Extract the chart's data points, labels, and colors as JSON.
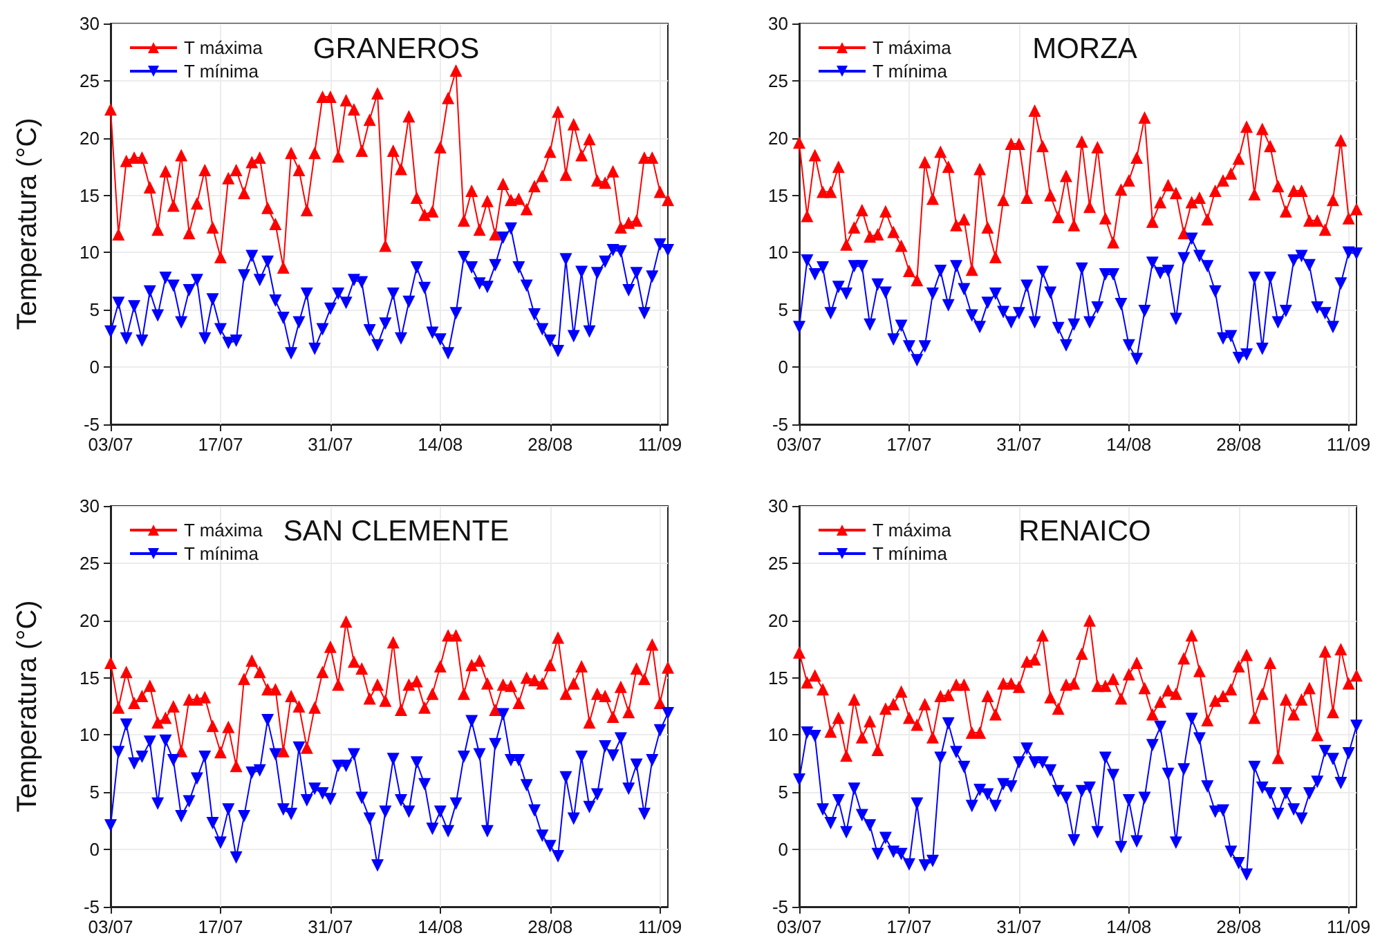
{
  "chart_data": [
    {
      "type": "line",
      "title": "GRANEROS",
      "ylabel": "Temperatura (°C)",
      "x": [
        "--07-03",
        "--07-04",
        "--07-05",
        "--07-06",
        "--07-07",
        "--07-08",
        "--07-09",
        "--07-10",
        "--07-11",
        "--07-12",
        "--07-13",
        "--07-14",
        "--07-15",
        "--07-16",
        "--07-17",
        "--07-18",
        "--07-19",
        "--07-20",
        "--07-21",
        "--07-22",
        "--07-23",
        "--07-24",
        "--07-25",
        "--07-26",
        "--07-27",
        "--07-28",
        "--07-29",
        "--07-30",
        "--07-31",
        "--08-01",
        "--08-02",
        "--08-03",
        "--08-04",
        "--08-05",
        "--08-06",
        "--08-07",
        "--08-08",
        "--08-09",
        "--08-10",
        "--08-11",
        "--08-12",
        "--08-13",
        "--08-14",
        "--08-15",
        "--08-16",
        "--08-17",
        "--08-18",
        "--08-19",
        "--08-20",
        "--08-21",
        "--08-22",
        "--08-23",
        "--08-24",
        "--08-25",
        "--08-26",
        "--08-27",
        "--08-28",
        "--08-29",
        "--08-30",
        "--08-31",
        "--09-01",
        "--09-02",
        "--09-03",
        "--09-04",
        "--09-05",
        "--09-06",
        "--09-07",
        "--09-08",
        "--09-09",
        "--09-10",
        "--09-11",
        "--09-12"
      ],
      "series": [
        {
          "name": "T máxima",
          "color": "#ff0000",
          "marker": "triangle",
          "values": [
            22.5,
            11.6,
            18.0,
            18.3,
            18.3,
            15.7,
            12.0,
            17.1,
            14.1,
            18.5,
            11.7,
            14.3,
            17.2,
            12.2,
            9.6,
            16.5,
            17.2,
            15.2,
            17.9,
            18.3,
            13.9,
            12.5,
            8.7,
            18.7,
            17.2,
            13.7,
            18.7,
            23.6,
            23.6,
            18.4,
            23.3,
            22.5,
            18.9,
            21.6,
            23.9,
            10.6,
            18.9,
            17.3,
            21.9,
            14.8,
            13.3,
            13.6,
            19.2,
            23.5,
            25.9,
            12.8,
            15.4,
            12.0,
            14.5,
            11.6,
            16.0,
            14.6,
            14.7,
            13.8,
            15.8,
            16.7,
            18.8,
            22.3,
            16.8,
            21.2,
            18.5,
            19.9,
            16.3,
            16.1,
            17.1,
            12.2,
            12.6,
            12.8,
            18.3,
            18.3,
            15.3,
            14.6
          ]
        },
        {
          "name": "T mínima",
          "color": "#0000ff",
          "marker": "triangle-down",
          "values": [
            3.1,
            5.6,
            2.5,
            5.3,
            2.3,
            6.6,
            4.5,
            7.8,
            7.1,
            3.9,
            6.7,
            7.6,
            2.5,
            5.9,
            3.3,
            2.1,
            2.3,
            8.0,
            9.7,
            7.6,
            9.2,
            5.8,
            4.3,
            1.2,
            3.9,
            6.4,
            1.6,
            3.3,
            5.1,
            6.4,
            5.6,
            7.6,
            7.4,
            3.2,
            1.9,
            3.8,
            6.4,
            2.5,
            5.7,
            8.7,
            6.9,
            3.0,
            2.4,
            1.2,
            4.7,
            9.6,
            8.7,
            7.3,
            7.0,
            8.9,
            11.3,
            12.1,
            8.7,
            7.1,
            4.6,
            3.3,
            2.3,
            1.4,
            9.4,
            2.7,
            8.3,
            3.1,
            8.2,
            9.2,
            10.2,
            10.1,
            6.7,
            8.2,
            4.7,
            7.9,
            10.7,
            10.2
          ]
        }
      ],
      "xlim": [
        "--07-03",
        "--09-12"
      ],
      "xticks": [
        {
          "value": "--07-03",
          "label": "03/07"
        },
        {
          "value": "--07-17",
          "label": "17/07"
        },
        {
          "value": "--07-31",
          "label": "31/07"
        },
        {
          "value": "--08-14",
          "label": "14/08"
        },
        {
          "value": "--08-28",
          "label": "28/08"
        },
        {
          "value": "--09-11",
          "label": "11/09"
        }
      ],
      "ylim": [
        -5,
        30
      ],
      "yticks": [
        -5,
        0,
        5,
        10,
        15,
        20,
        25,
        30
      ],
      "grid": true,
      "legend": "top left",
      "line_style": "solid"
    },
    {
      "type": "line",
      "title": "MORZA",
      "x": [
        "--07-03",
        "--07-04",
        "--07-05",
        "--07-06",
        "--07-07",
        "--07-08",
        "--07-09",
        "--07-10",
        "--07-11",
        "--07-12",
        "--07-13",
        "--07-14",
        "--07-15",
        "--07-16",
        "--07-17",
        "--07-18",
        "--07-19",
        "--07-20",
        "--07-21",
        "--07-22",
        "--07-23",
        "--07-24",
        "--07-25",
        "--07-26",
        "--07-27",
        "--07-28",
        "--07-29",
        "--07-30",
        "--07-31",
        "--08-01",
        "--08-02",
        "--08-03",
        "--08-04",
        "--08-05",
        "--08-06",
        "--08-07",
        "--08-08",
        "--08-09",
        "--08-10",
        "--08-11",
        "--08-12",
        "--08-13",
        "--08-14",
        "--08-15",
        "--08-16",
        "--08-17",
        "--08-18",
        "--08-19",
        "--08-20",
        "--08-21",
        "--08-22",
        "--08-23",
        "--08-24",
        "--08-25",
        "--08-26",
        "--08-27",
        "--08-28",
        "--08-29",
        "--08-30",
        "--08-31",
        "--09-01",
        "--09-02",
        "--09-03",
        "--09-04",
        "--09-05",
        "--09-06",
        "--09-07",
        "--09-08",
        "--09-09",
        "--09-10",
        "--09-11",
        "--09-12"
      ],
      "series": [
        {
          "name": "T máxima",
          "color": "#ff0000",
          "marker": "triangle",
          "values": [
            19.6,
            13.2,
            18.5,
            15.3,
            15.3,
            17.5,
            10.7,
            12.2,
            13.7,
            11.4,
            11.6,
            13.6,
            11.8,
            10.6,
            8.4,
            7.6,
            17.9,
            14.7,
            18.8,
            17.5,
            12.4,
            12.9,
            8.5,
            17.3,
            12.2,
            9.6,
            14.6,
            19.5,
            19.5,
            14.8,
            22.4,
            19.3,
            15.0,
            13.1,
            16.7,
            12.4,
            19.7,
            14.0,
            19.2,
            13.0,
            10.9,
            15.5,
            16.3,
            18.3,
            21.8,
            12.7,
            14.4,
            15.9,
            15.2,
            11.7,
            14.4,
            14.8,
            12.9,
            15.4,
            16.3,
            16.9,
            18.2,
            21.0,
            15.1,
            20.8,
            19.3,
            15.8,
            13.6,
            15.4,
            15.4,
            12.8,
            12.8,
            12.0,
            14.6,
            19.8,
            13.0,
            13.8
          ]
        },
        {
          "name": "T mínima",
          "color": "#0000ff",
          "marker": "triangle-down",
          "values": [
            3.5,
            9.3,
            8.1,
            8.7,
            4.7,
            7.0,
            6.4,
            8.8,
            8.8,
            3.7,
            7.2,
            6.5,
            2.4,
            3.6,
            1.8,
            0.6,
            1.8,
            6.4,
            8.4,
            5.4,
            8.8,
            6.8,
            4.5,
            3.5,
            5.6,
            6.4,
            4.8,
            3.9,
            4.7,
            7.1,
            3.9,
            8.3,
            6.5,
            3.4,
            1.9,
            3.7,
            8.6,
            3.9,
            5.2,
            8.1,
            8.1,
            5.5,
            1.9,
            0.7,
            4.9,
            9.1,
            8.2,
            8.4,
            4.2,
            9.5,
            11.2,
            9.7,
            8.8,
            6.6,
            2.5,
            2.7,
            0.8,
            1.1,
            7.8,
            1.6,
            7.8,
            3.9,
            4.9,
            9.3,
            9.7,
            8.9,
            5.2,
            4.7,
            3.5,
            7.3,
            10.0,
            9.9
          ]
        }
      ],
      "xlim": [
        "--07-03",
        "--09-12"
      ],
      "xticks": [
        {
          "value": "--07-03",
          "label": "03/07"
        },
        {
          "value": "--07-17",
          "label": "17/07"
        },
        {
          "value": "--07-31",
          "label": "31/07"
        },
        {
          "value": "--08-14",
          "label": "14/08"
        },
        {
          "value": "--08-28",
          "label": "28/08"
        },
        {
          "value": "--09-11",
          "label": "11/09"
        }
      ],
      "ylim": [
        -5,
        30
      ],
      "yticks": [
        -5,
        0,
        5,
        10,
        15,
        20,
        25,
        30
      ],
      "grid": true,
      "legend": "top left",
      "line_style": "solid"
    },
    {
      "type": "line",
      "title": "SAN CLEMENTE",
      "ylabel": "Temperatura (°C)",
      "x": [
        "--07-03",
        "--07-04",
        "--07-05",
        "--07-06",
        "--07-07",
        "--07-08",
        "--07-09",
        "--07-10",
        "--07-11",
        "--07-12",
        "--07-13",
        "--07-14",
        "--07-15",
        "--07-16",
        "--07-17",
        "--07-18",
        "--07-19",
        "--07-20",
        "--07-21",
        "--07-22",
        "--07-23",
        "--07-24",
        "--07-25",
        "--07-26",
        "--07-27",
        "--07-28",
        "--07-29",
        "--07-30",
        "--07-31",
        "--08-01",
        "--08-02",
        "--08-03",
        "--08-04",
        "--08-05",
        "--08-06",
        "--08-07",
        "--08-08",
        "--08-09",
        "--08-10",
        "--08-11",
        "--08-12",
        "--08-13",
        "--08-14",
        "--08-15",
        "--08-16",
        "--08-17",
        "--08-18",
        "--08-19",
        "--08-20",
        "--08-21",
        "--08-22",
        "--08-23",
        "--08-24",
        "--08-25",
        "--08-26",
        "--08-27",
        "--08-28",
        "--08-29",
        "--08-30",
        "--08-31",
        "--09-01",
        "--09-02",
        "--09-03",
        "--09-04",
        "--09-05",
        "--09-06",
        "--09-07",
        "--09-08",
        "--09-09",
        "--09-10",
        "--09-11",
        "--09-12"
      ],
      "series": [
        {
          "name": "T máxima",
          "color": "#ff0000",
          "marker": "triangle",
          "values": [
            16.3,
            12.4,
            15.5,
            12.8,
            13.4,
            14.3,
            11.1,
            11.5,
            12.5,
            8.6,
            13.1,
            13.1,
            13.3,
            10.8,
            8.5,
            10.7,
            7.3,
            14.9,
            16.5,
            15.5,
            14.0,
            14.0,
            8.6,
            13.4,
            12.5,
            8.9,
            12.4,
            15.5,
            17.7,
            14.4,
            19.9,
            16.4,
            15.8,
            13.2,
            14.4,
            13.0,
            18.1,
            12.2,
            14.4,
            14.7,
            12.4,
            13.6,
            16.0,
            18.7,
            18.7,
            13.6,
            16.1,
            16.5,
            14.5,
            12.2,
            14.4,
            14.3,
            12.8,
            15.0,
            14.8,
            14.5,
            16.1,
            18.5,
            13.6,
            14.5,
            16.0,
            11.1,
            13.6,
            13.4,
            11.6,
            14.2,
            12.0,
            15.8,
            14.9,
            17.9,
            12.8,
            15.9
          ]
        },
        {
          "name": "T mínima",
          "color": "#0000ff",
          "marker": "triangle-down",
          "values": [
            2.1,
            8.5,
            10.9,
            7.5,
            8.1,
            9.4,
            4.0,
            9.5,
            7.8,
            2.9,
            4.2,
            6.2,
            8.1,
            2.3,
            0.6,
            3.5,
            -0.7,
            2.9,
            6.7,
            6.9,
            11.3,
            8.3,
            3.5,
            3.1,
            8.9,
            4.3,
            5.3,
            4.9,
            4.4,
            7.3,
            7.3,
            8.3,
            4.5,
            2.7,
            -1.4,
            3.3,
            7.9,
            4.3,
            3.3,
            7.6,
            5.7,
            1.8,
            3.3,
            1.6,
            4.0,
            8.1,
            11.2,
            8.3,
            1.6,
            9.2,
            11.8,
            7.8,
            7.8,
            5.6,
            3.4,
            1.2,
            0.3,
            -0.6,
            6.3,
            2.7,
            8.1,
            3.7,
            4.8,
            9.0,
            8.2,
            9.7,
            5.3,
            7.4,
            3.1,
            7.8,
            10.4,
            11.9
          ]
        }
      ],
      "xlim": [
        "--07-03",
        "--09-12"
      ],
      "xticks": [
        {
          "value": "--07-03",
          "label": "03/07"
        },
        {
          "value": "--07-17",
          "label": "17/07"
        },
        {
          "value": "--07-31",
          "label": "31/07"
        },
        {
          "value": "--08-14",
          "label": "14/08"
        },
        {
          "value": "--08-28",
          "label": "28/08"
        },
        {
          "value": "--09-11",
          "label": "11/09"
        }
      ],
      "ylim": [
        -5,
        30
      ],
      "yticks": [
        -5,
        0,
        5,
        10,
        15,
        20,
        25,
        30
      ],
      "grid": true,
      "legend": "top left",
      "line_style": "solid"
    },
    {
      "type": "line",
      "title": "RENAICO",
      "x": [
        "--07-03",
        "--07-04",
        "--07-05",
        "--07-06",
        "--07-07",
        "--07-08",
        "--07-09",
        "--07-10",
        "--07-11",
        "--07-12",
        "--07-13",
        "--07-14",
        "--07-15",
        "--07-16",
        "--07-17",
        "--07-18",
        "--07-19",
        "--07-20",
        "--07-21",
        "--07-22",
        "--07-23",
        "--07-24",
        "--07-25",
        "--07-26",
        "--07-27",
        "--07-28",
        "--07-29",
        "--07-30",
        "--07-31",
        "--08-01",
        "--08-02",
        "--08-03",
        "--08-04",
        "--08-05",
        "--08-06",
        "--08-07",
        "--08-08",
        "--08-09",
        "--08-10",
        "--08-11",
        "--08-12",
        "--08-13",
        "--08-14",
        "--08-15",
        "--08-16",
        "--08-17",
        "--08-18",
        "--08-19",
        "--08-20",
        "--08-21",
        "--08-22",
        "--08-23",
        "--08-24",
        "--08-25",
        "--08-26",
        "--08-27",
        "--08-28",
        "--08-29",
        "--08-30",
        "--08-31",
        "--09-01",
        "--09-02",
        "--09-03",
        "--09-04",
        "--09-05",
        "--09-06",
        "--09-07",
        "--09-08",
        "--09-09",
        "--09-10",
        "--09-11",
        "--09-12"
      ],
      "series": [
        {
          "name": "T máxima",
          "color": "#ff0000",
          "marker": "triangle",
          "values": [
            17.2,
            14.6,
            15.2,
            14.0,
            10.3,
            11.5,
            8.2,
            13.1,
            9.8,
            11.2,
            8.7,
            12.3,
            12.7,
            13.8,
            11.5,
            10.9,
            12.7,
            9.8,
            13.4,
            13.5,
            14.4,
            14.4,
            10.2,
            10.2,
            13.4,
            11.8,
            14.5,
            14.5,
            14.2,
            16.4,
            16.6,
            18.7,
            13.3,
            12.3,
            14.4,
            14.5,
            17.1,
            20.0,
            14.3,
            14.3,
            14.9,
            13.2,
            15.3,
            16.3,
            14.1,
            11.8,
            12.9,
            13.9,
            13.6,
            16.7,
            18.7,
            15.6,
            11.3,
            13.0,
            13.4,
            14.0,
            16.0,
            17.0,
            11.5,
            13.6,
            16.3,
            8.0,
            13.1,
            11.8,
            13.1,
            14.1,
            10.0,
            17.3,
            12.0,
            17.5,
            14.5,
            15.2
          ]
        },
        {
          "name": "T mínima",
          "color": "#0000ff",
          "marker": "triangle-down",
          "values": [
            6.1,
            10.2,
            9.9,
            3.5,
            2.3,
            4.3,
            1.5,
            5.3,
            3.0,
            2.1,
            -0.4,
            1.0,
            -0.2,
            -0.4,
            -1.3,
            4.0,
            -1.4,
            -1.0,
            8.0,
            11.0,
            8.5,
            7.2,
            3.8,
            5.2,
            4.8,
            3.8,
            5.7,
            5.5,
            7.6,
            8.8,
            7.6,
            7.6,
            6.9,
            5.1,
            4.5,
            0.8,
            5.1,
            5.4,
            1.5,
            8.0,
            6.5,
            0.2,
            4.3,
            0.7,
            4.5,
            9.1,
            10.7,
            6.6,
            0.6,
            7.0,
            11.4,
            9.7,
            5.5,
            3.3,
            3.4,
            -0.2,
            -1.2,
            -2.2,
            7.2,
            5.4,
            4.9,
            3.1,
            4.9,
            3.5,
            2.7,
            4.9,
            5.9,
            8.6,
            7.9,
            5.8,
            8.4,
            10.8
          ]
        }
      ],
      "xlim": [
        "--07-03",
        "--09-12"
      ],
      "xticks": [
        {
          "value": "--07-03",
          "label": "03/07"
        },
        {
          "value": "--07-17",
          "label": "17/07"
        },
        {
          "value": "--07-31",
          "label": "31/07"
        },
        {
          "value": "--08-14",
          "label": "14/08"
        },
        {
          "value": "--08-28",
          "label": "28/08"
        },
        {
          "value": "--09-11",
          "label": "11/09"
        }
      ],
      "ylim": [
        -5,
        30
      ],
      "yticks": [
        -5,
        0,
        5,
        10,
        15,
        20,
        25,
        30
      ],
      "grid": true,
      "legend": "top left",
      "line_style": "solid"
    }
  ]
}
